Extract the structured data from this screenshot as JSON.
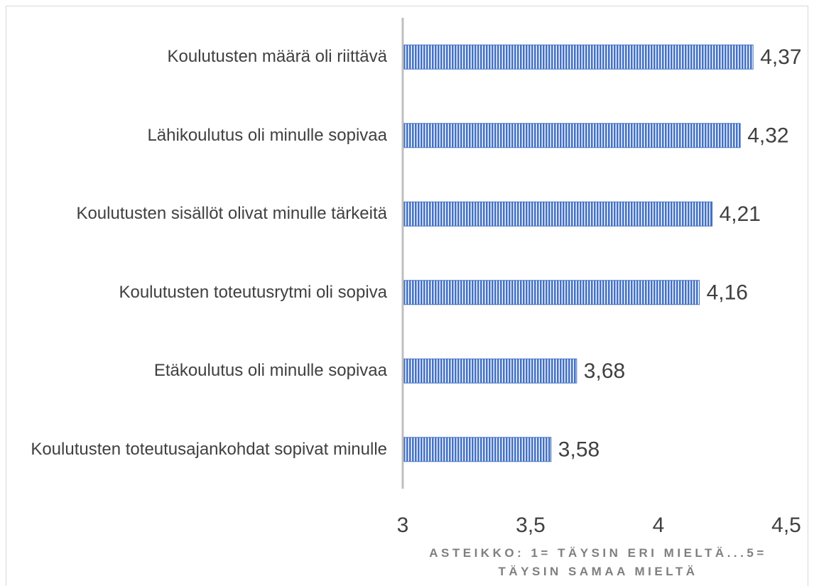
{
  "chart_data": {
    "type": "barh",
    "categories": [
      "Koulutusten määrä oli riittävä",
      "Lähikoulutus oli minulle sopivaa",
      "Koulutusten sisällöt olivat minulle tärkeitä",
      "Koulutusten toteutusrytmi oli sopiva",
      "Etäkoulutus oli minulle sopivaa",
      "Koulutusten toteutusajankohdat sopivat minulle"
    ],
    "values": [
      4.37,
      4.32,
      4.21,
      4.16,
      3.68,
      3.58
    ],
    "value_labels": [
      "4,37",
      "4,32",
      "4,21",
      "4,16",
      "3,68",
      "3,58"
    ],
    "color": "#4472c4",
    "xlim": [
      3,
      4.5
    ],
    "xticks": [
      3,
      {
        "value": 3.5,
        "label": "3,5"
      },
      4,
      {
        "value": 4.5,
        "label": "4,5"
      }
    ],
    "xlabel": "ASTEIKKO: 1= TÄYSIN ERI MIELTÄ...5= TÄYSIN SAMAA MIELTÄ",
    "grid": false
  }
}
